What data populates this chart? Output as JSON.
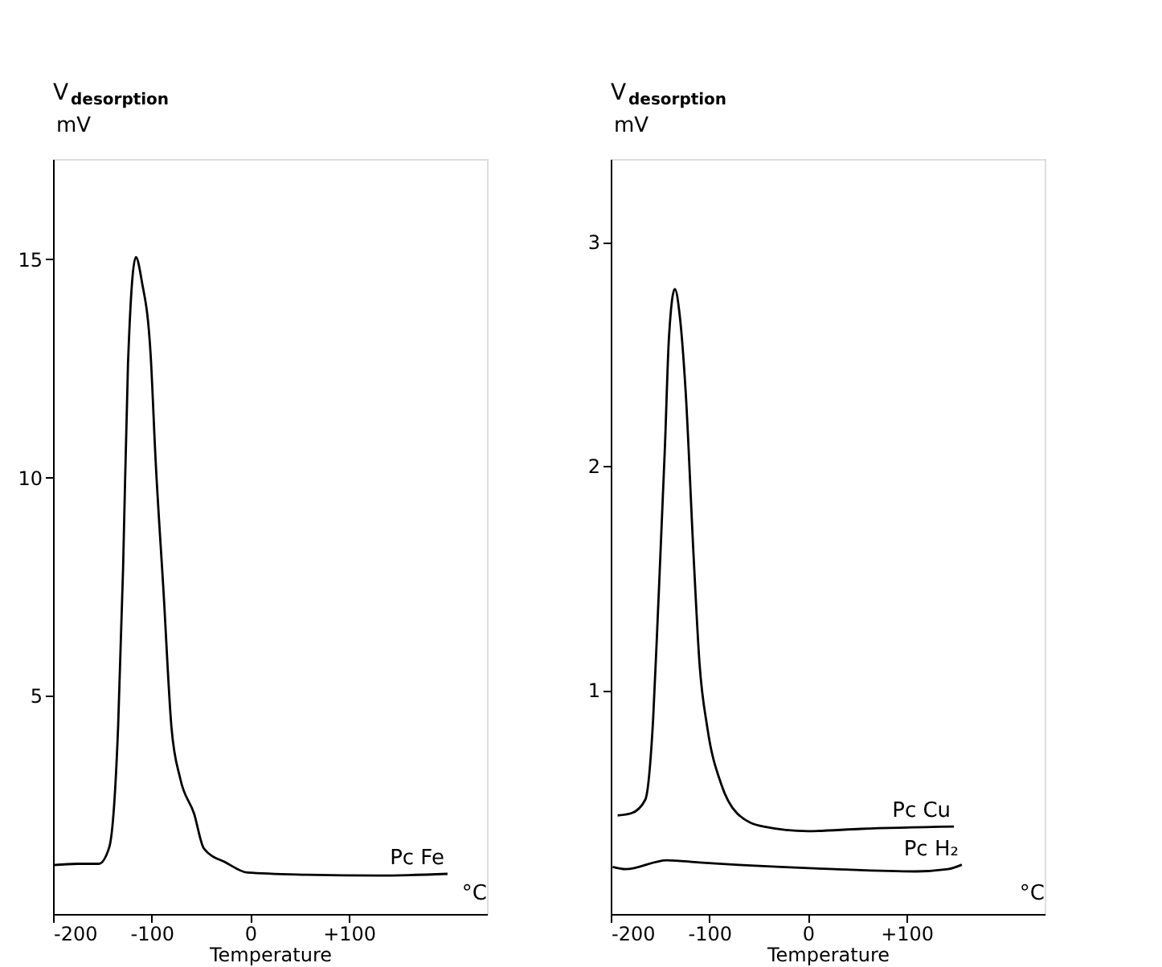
{
  "chart_data": [
    {
      "type": "line",
      "xlabel": "Temperature",
      "ylabel": "V$_{desorption}$ mV",
      "annotations": [
        "°C"
      ],
      "xlim": [
        -200,
        240
      ],
      "ylim": [
        0,
        17.3
      ],
      "xticks": [
        -200,
        -100,
        0,
        {
          "value": 100,
          "label": "+100"
        }
      ],
      "yticks": [
        5,
        10,
        15
      ],
      "grid": false,
      "legend": false,
      "series": [
        {
          "name": "Pc Fe",
          "color": "#000000",
          "x": [
            -200,
            -175,
            -153.6,
            -143,
            -134,
            -129,
            -124,
            -116,
            -110,
            -101,
            -96,
            -88,
            -80,
            -71,
            -57,
            -47,
            -24,
            -3,
            57,
            130,
            200
          ],
          "values": [
            1.12,
            1.15,
            1.15,
            1.53,
            4.3,
            7.9,
            12.6,
            15.05,
            14.5,
            12.8,
            10.4,
            7.4,
            4.3,
            3.1,
            2.3,
            1.5,
            1.17,
            0.95,
            0.9,
            0.88,
            0.92
          ]
        }
      ]
    },
    {
      "type": "line",
      "xlabel": "Temperature",
      "ylabel": "V$_{desorption}$ mV",
      "annotations": [
        "°C"
      ],
      "xlim": [
        -200,
        240
      ],
      "ylim": [
        0,
        3.37
      ],
      "xticks": [
        -200,
        -100,
        0,
        {
          "value": 100,
          "label": "+100"
        }
      ],
      "yticks": [
        1,
        2,
        3
      ],
      "grid": false,
      "legend": false,
      "series": [
        {
          "name": "Pc Cu",
          "color": "#000000",
          "x": [
            -193,
            -179,
            -165,
            -157,
            -152,
            -145,
            -141,
            -135,
            -130,
            -124,
            -116,
            -110,
            -102,
            -88,
            -72,
            -45,
            0,
            54,
            148
          ],
          "values": [
            0.44,
            0.45,
            0.51,
            0.87,
            1.36,
            2.09,
            2.57,
            2.79,
            2.67,
            2.33,
            1.6,
            1.12,
            0.83,
            0.58,
            0.45,
            0.39,
            0.37,
            0.38,
            0.39
          ]
        },
        {
          "name": "Pc H₂",
          "color": "#000000",
          "x": [
            -198,
            -185,
            -143,
            -110,
            -28,
            27,
            109,
            142,
            156
          ],
          "values": [
            0.21,
            0.2,
            0.24,
            0.23,
            0.21,
            0.2,
            0.19,
            0.2,
            0.22
          ]
        }
      ]
    }
  ]
}
